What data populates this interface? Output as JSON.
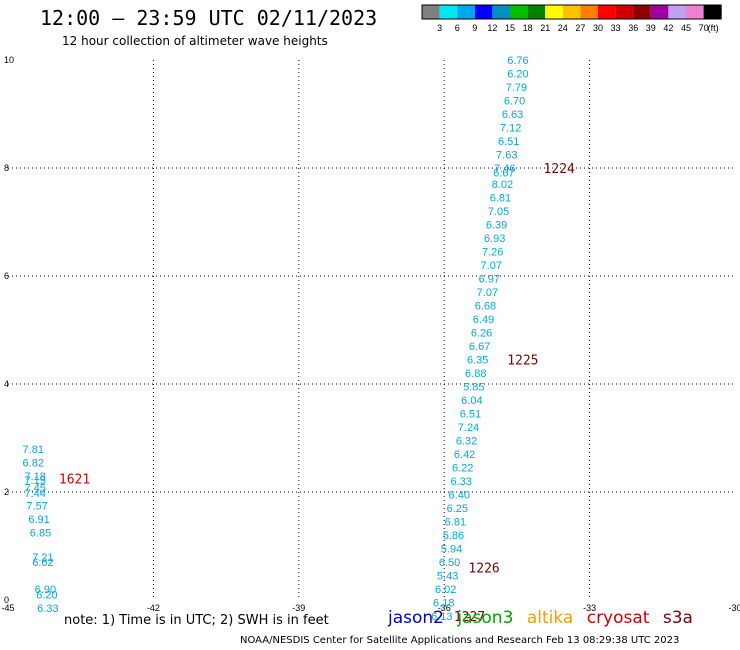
{
  "title": "12:00 – 23:59 UTC 02/11/2023",
  "subtitle": "12 hour collection of altimeter wave heights",
  "colorbar": {
    "colors": [
      "#808080",
      "#00e8f0",
      "#00a8f0",
      "#0000ff",
      "#0090c0",
      "#00c000",
      "#008000",
      "#ffff00",
      "#ffc000",
      "#ff8000",
      "#ff0000",
      "#d00000",
      "#900000",
      "#a000a0",
      "#c0a0f0",
      "#f080d0",
      "#000000"
    ],
    "labels": [
      "3",
      "6",
      "9",
      "12",
      "15",
      "18",
      "21",
      "24",
      "27",
      "30",
      "33",
      "36",
      "39",
      "42",
      "45",
      "70"
    ],
    "unit": "(ft)"
  },
  "note": "note:  1) Time is in UTC;  2) SWH is in feet",
  "legend": [
    {
      "label": "jason2",
      "color": "#0000d0"
    },
    {
      "label": "jason3",
      "color": "#00a000"
    },
    {
      "label": "altika",
      "color": "#f0a000"
    },
    {
      "label": "cryosat",
      "color": "#d00000"
    },
    {
      "label": "s3a",
      "color": "#800000"
    }
  ],
  "footer": "NOAA/NESDIS Center for Satellite Applications and Research    Feb 13 08:29:38 UTC 2023",
  "chart_data": {
    "type": "scatter",
    "xlim": [
      -45,
      -30
    ],
    "ylim": [
      0,
      10
    ],
    "xticks": [
      "-45",
      "-42",
      "-39",
      "-36",
      "-33",
      "-30"
    ],
    "yticks": [
      "0",
      "2",
      "4",
      "6",
      "8",
      "10"
    ],
    "grid": true,
    "point_color": "#00a8e0",
    "series": [
      {
        "points": [
          {
            "x": -34.7,
            "y": 10.0,
            "label": "6.76"
          },
          {
            "x": -34.7,
            "y": 9.75,
            "label": "6.20"
          },
          {
            "x": -34.73,
            "y": 9.5,
            "label": "7.79"
          },
          {
            "x": -34.77,
            "y": 9.25,
            "label": "6.70"
          },
          {
            "x": -34.81,
            "y": 9.0,
            "label": "6.63"
          },
          {
            "x": -34.85,
            "y": 8.75,
            "label": "7.12"
          },
          {
            "x": -34.89,
            "y": 8.5,
            "label": "6.51"
          },
          {
            "x": -34.93,
            "y": 8.25,
            "label": "7.63"
          },
          {
            "x": -34.97,
            "y": 8.0,
            "label": "7.46"
          },
          {
            "x": -34.99,
            "y": 7.92,
            "label": "6.67"
          },
          {
            "x": -35.02,
            "y": 7.7,
            "label": "8.02"
          },
          {
            "x": -35.06,
            "y": 7.45,
            "label": "6.81"
          },
          {
            "x": -35.1,
            "y": 7.2,
            "label": "7.05"
          },
          {
            "x": -35.14,
            "y": 6.95,
            "label": "6.39"
          },
          {
            "x": -35.18,
            "y": 6.7,
            "label": "6.93"
          },
          {
            "x": -35.22,
            "y": 6.45,
            "label": "7.26"
          },
          {
            "x": -35.25,
            "y": 6.2,
            "label": "7.07"
          },
          {
            "x": -35.29,
            "y": 5.95,
            "label": "6.97"
          },
          {
            "x": -35.33,
            "y": 5.7,
            "label": "7.07"
          },
          {
            "x": -35.37,
            "y": 5.45,
            "label": "6.68"
          },
          {
            "x": -35.41,
            "y": 5.2,
            "label": "6.49"
          },
          {
            "x": -35.45,
            "y": 4.95,
            "label": "6.26"
          },
          {
            "x": -35.49,
            "y": 4.7,
            "label": "6.67"
          },
          {
            "x": -35.53,
            "y": 4.45,
            "label": "6.35"
          },
          {
            "x": -35.57,
            "y": 4.2,
            "label": "6.88"
          },
          {
            "x": -35.61,
            "y": 3.95,
            "label": "5.85"
          },
          {
            "x": -35.65,
            "y": 3.7,
            "label": "6.04"
          },
          {
            "x": -35.68,
            "y": 3.45,
            "label": "6.51"
          },
          {
            "x": -35.72,
            "y": 3.2,
            "label": "7.24"
          },
          {
            "x": -35.76,
            "y": 2.95,
            "label": "6.32"
          },
          {
            "x": -35.8,
            "y": 2.7,
            "label": "6.42"
          },
          {
            "x": -35.84,
            "y": 2.45,
            "label": "6.22"
          },
          {
            "x": -35.87,
            "y": 2.2,
            "label": "6.33"
          },
          {
            "x": -35.91,
            "y": 1.95,
            "label": "6.40"
          },
          {
            "x": -35.95,
            "y": 1.7,
            "label": "6.25"
          },
          {
            "x": -35.99,
            "y": 1.45,
            "label": "6.81"
          },
          {
            "x": -36.03,
            "y": 1.2,
            "label": "5.86"
          },
          {
            "x": -36.07,
            "y": 0.95,
            "label": "5.94"
          },
          {
            "x": -36.11,
            "y": 0.7,
            "label": "6.50"
          },
          {
            "x": -36.15,
            "y": 0.45,
            "label": "5.43"
          },
          {
            "x": -36.19,
            "y": 0.2,
            "label": "6.02"
          },
          {
            "x": -36.23,
            "y": -0.05,
            "label": "6.18"
          },
          {
            "x": -36.27,
            "y": -0.3,
            "label": "6.13"
          }
        ]
      },
      {
        "points": [
          {
            "x": -44.7,
            "y": 2.8,
            "label": "7.81"
          },
          {
            "x": -44.7,
            "y": 2.55,
            "label": "6.82"
          },
          {
            "x": -44.66,
            "y": 2.3,
            "label": "7.18"
          },
          {
            "x": -44.66,
            "y": 2.22,
            "label": "7.19"
          },
          {
            "x": -44.66,
            "y": 2.08,
            "label": "7.45"
          },
          {
            "x": -44.66,
            "y": 1.98,
            "label": "7.44"
          },
          {
            "x": -44.62,
            "y": 1.75,
            "label": "7.57"
          },
          {
            "x": -44.58,
            "y": 1.5,
            "label": "6.91"
          },
          {
            "x": -44.55,
            "y": 1.25,
            "label": "6.85"
          },
          {
            "x": -44.5,
            "y": 0.8,
            "label": "7.21"
          },
          {
            "x": -44.5,
            "y": 0.7,
            "label": "6.62"
          },
          {
            "x": -44.45,
            "y": 0.2,
            "label": "6.90"
          },
          {
            "x": -44.42,
            "y": 0.1,
            "label": "6.20"
          },
          {
            "x": -44.4,
            "y": -0.15,
            "label": "6.33"
          }
        ]
      }
    ],
    "time_labels": [
      {
        "text": "1224",
        "x": -33.95,
        "y": 8.0,
        "color": "#800000"
      },
      {
        "text": "1225",
        "x": -34.7,
        "y": 4.45,
        "color": "#800000"
      },
      {
        "text": "1226",
        "x": -35.5,
        "y": 0.6,
        "color": "#800000"
      },
      {
        "text": "1227",
        "x": -35.8,
        "y": -0.3,
        "color": "#800000"
      },
      {
        "text": "1621",
        "x": -43.95,
        "y": 2.25,
        "color": "#d00000"
      }
    ]
  }
}
